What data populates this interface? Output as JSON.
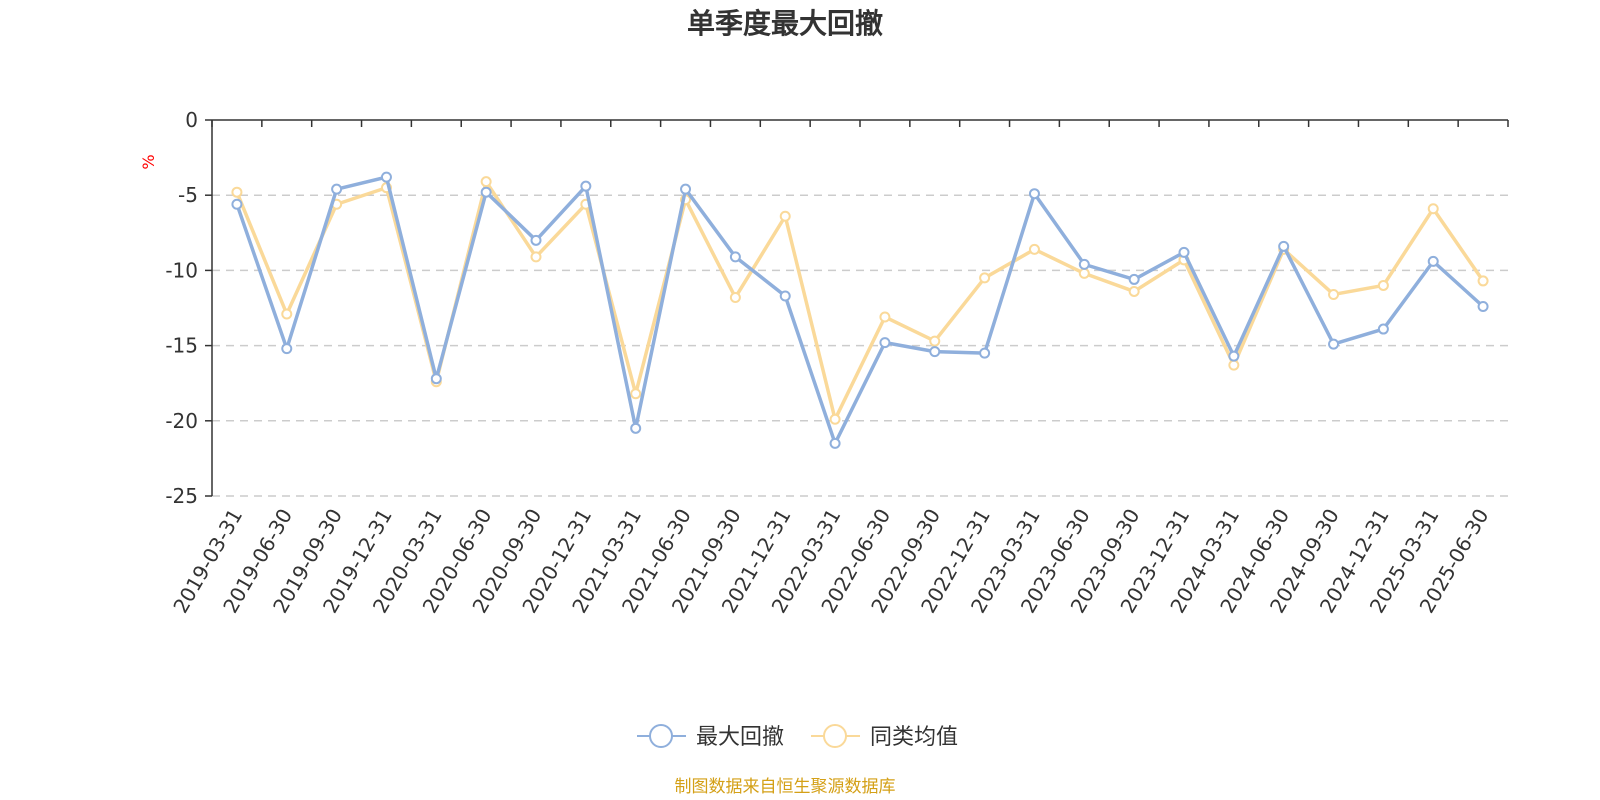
{
  "chart_data": {
    "type": "line",
    "title": "单季度最大回撤",
    "ylabel": "%",
    "ylim": [
      -25,
      0
    ],
    "yticks": [
      0,
      -5,
      -10,
      -15,
      -20,
      -25
    ],
    "grid": true,
    "legend_position": "bottom",
    "categories": [
      "2019-03-31",
      "2019-06-30",
      "2019-09-30",
      "2019-12-31",
      "2020-03-31",
      "2020-06-30",
      "2020-09-30",
      "2020-12-31",
      "2021-03-31",
      "2021-06-30",
      "2021-09-30",
      "2021-12-31",
      "2022-03-31",
      "2022-06-30",
      "2022-09-30",
      "2022-12-31",
      "2023-03-31",
      "2023-06-30",
      "2023-09-30",
      "2023-12-31",
      "2024-03-31",
      "2024-06-30",
      "2024-09-30",
      "2024-12-31",
      "2025-03-31",
      "2025-06-30"
    ],
    "series": [
      {
        "name": "最大回撤",
        "color": "#8fafdc",
        "values": [
          -5.6,
          -15.2,
          -4.6,
          -3.8,
          -17.2,
          -4.8,
          -8.0,
          -4.4,
          -20.5,
          -4.6,
          -9.1,
          -11.7,
          -21.5,
          -14.8,
          -15.4,
          -15.5,
          -4.9,
          -9.6,
          -10.6,
          -8.8,
          -15.7,
          -8.4,
          -14.9,
          -13.9,
          -9.4,
          -12.4
        ]
      },
      {
        "name": "同类均值",
        "color": "#fad999",
        "values": [
          -4.8,
          -12.9,
          -5.6,
          -4.5,
          -17.4,
          -4.1,
          -9.1,
          -5.6,
          -18.2,
          -5.3,
          -11.8,
          -6.4,
          -19.9,
          -13.1,
          -14.7,
          -10.5,
          -8.6,
          -10.2,
          -11.4,
          -9.3,
          -16.3,
          -8.6,
          -11.6,
          -11.0,
          -5.9,
          -10.7
        ]
      }
    ],
    "source": "制图数据来自恒生聚源数据库"
  }
}
